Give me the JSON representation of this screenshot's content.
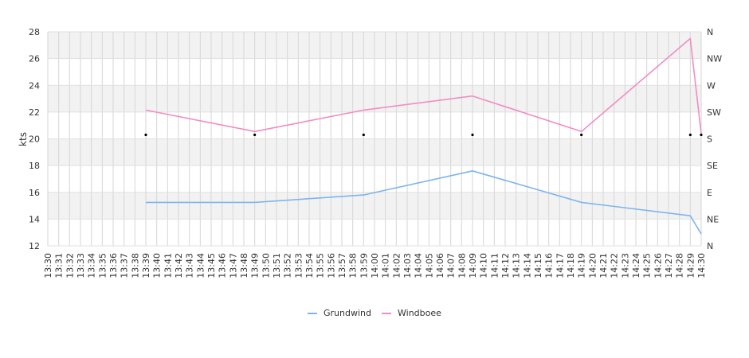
{
  "chart_data": {
    "type": "line",
    "title": "",
    "xlabel": "",
    "ylabel": "kts",
    "ylim": [
      12,
      28
    ],
    "yticks": [
      12,
      14,
      16,
      18,
      20,
      22,
      24,
      26,
      28
    ],
    "right_axis_labels": [
      "N",
      "NE",
      "E",
      "SE",
      "S",
      "SW",
      "W",
      "NW",
      "N"
    ],
    "x_tick_labels": [
      "13:30",
      "13:31",
      "13:32",
      "13:33",
      "13:34",
      "13:35",
      "13:36",
      "13:37",
      "13:38",
      "13:39",
      "13:40",
      "13:41",
      "13:42",
      "13:43",
      "13:44",
      "13:45",
      "13:46",
      "13:47",
      "13:48",
      "13:49",
      "13:50",
      "13:51",
      "13:52",
      "13:53",
      "13:54",
      "13:55",
      "13:56",
      "13:57",
      "13:58",
      "13:59",
      "14:00",
      "14:01",
      "14:02",
      "14:03",
      "14:04",
      "14:05",
      "14:06",
      "14:07",
      "14:08",
      "14:09",
      "14:10",
      "14:11",
      "14:12",
      "14:13",
      "14:14",
      "14:15",
      "14:16",
      "14:17",
      "14:18",
      "14:19",
      "14:20",
      "14:21",
      "14:22",
      "14:23",
      "14:24",
      "14:25",
      "14:26",
      "14:27",
      "14:28",
      "14:29",
      "14:30"
    ],
    "series": [
      {
        "name": "Grundwind",
        "color": "#7cb5ec",
        "points": [
          [
            "13:39",
            15.25
          ],
          [
            "13:49",
            15.25
          ],
          [
            "13:59",
            15.8
          ],
          [
            "14:09",
            17.6
          ],
          [
            "14:19",
            15.25
          ],
          [
            "14:29",
            14.25
          ],
          [
            "14:30",
            12.9
          ]
        ]
      },
      {
        "name": "Windboee",
        "color": "#f28cc4",
        "points": [
          [
            "13:39",
            22.15
          ],
          [
            "13:49",
            20.55
          ],
          [
            "13:59",
            22.15
          ],
          [
            "14:09",
            23.2
          ],
          [
            "14:19",
            20.55
          ],
          [
            "14:29",
            27.5
          ],
          [
            "14:30",
            20.4
          ]
        ]
      }
    ],
    "direction_markers": {
      "direction": "S",
      "times": [
        "13:39",
        "13:49",
        "13:59",
        "14:09",
        "14:19",
        "14:29",
        "14:30"
      ]
    },
    "legend": {
      "position": "bottom-center"
    },
    "grid": true
  }
}
